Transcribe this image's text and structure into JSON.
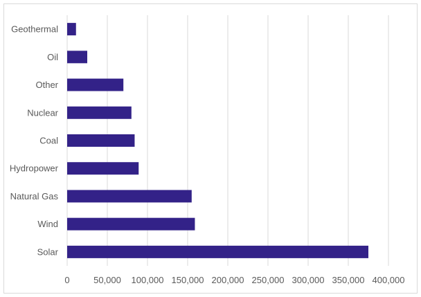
{
  "chart_data": {
    "type": "bar",
    "orientation": "horizontal",
    "categories": [
      "Geothermal",
      "Oil",
      "Other",
      "Nuclear",
      "Coal",
      "Hydropower",
      "Natural Gas",
      "Wind",
      "Solar"
    ],
    "values": [
      11000,
      25000,
      70000,
      80000,
      84000,
      89000,
      155000,
      159000,
      375000
    ],
    "xlim": [
      0,
      400000
    ],
    "xticks": [
      0,
      50000,
      100000,
      150000,
      200000,
      250000,
      300000,
      350000,
      400000
    ],
    "xtick_labels": [
      "0",
      "50,000",
      "100,000",
      "150,000",
      "200,000",
      "250,000",
      "300,000",
      "350,000",
      "400,000"
    ],
    "title": "",
    "xlabel": "",
    "ylabel": "",
    "grid": "vertical",
    "legend": "none",
    "bar_color": "#332288",
    "grid_color": "#d9d9d9"
  }
}
